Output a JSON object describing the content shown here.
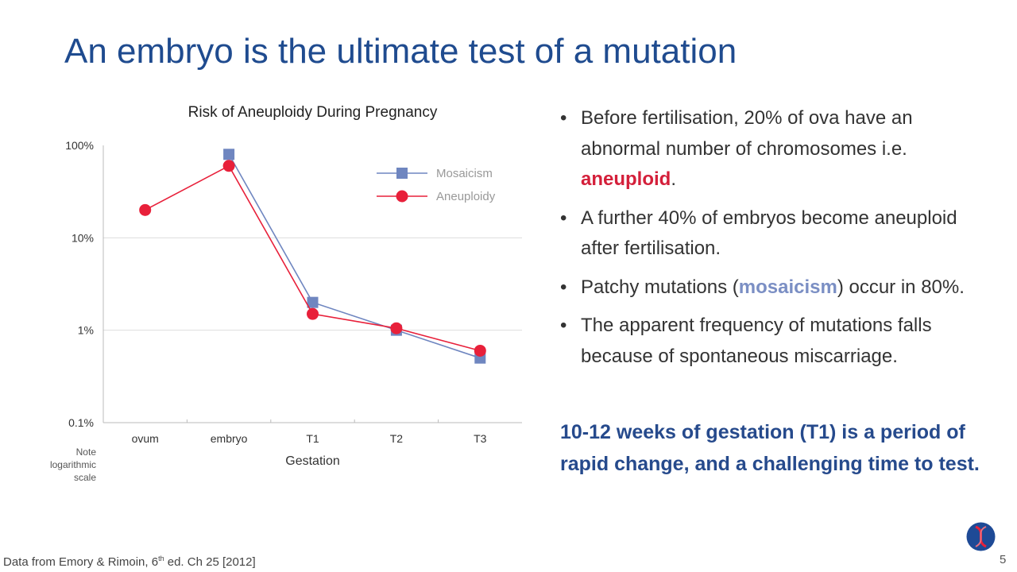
{
  "slide": {
    "title": "An embryo is the ultimate test of a mutation",
    "bullets": [
      {
        "before": "Before fertilisation, 20% of ova have an abnormal number of chromosomes i.e. ",
        "highlight": "aneuploid",
        "after": "."
      },
      {
        "before": "A further 40% of embryos become aneuploid after fertilisation.",
        "highlight": "",
        "after": ""
      },
      {
        "before": "Patchy mutations (",
        "highlight": "mosaicism",
        "after": ") occur in 80%."
      },
      {
        "before": "The apparent frequency of mutations falls because of spontaneous miscarriage.",
        "highlight": "",
        "after": ""
      }
    ],
    "conclusion": "10-12 weeks of gestation (T1) is a period of rapid change, and a challenging time to test.",
    "source_prefix": "Data from Emory & Rimoin, 6",
    "source_sup": "th",
    "source_suffix": " ed. Ch 25 [2012]",
    "page_number": "5",
    "logo": "dna-helix-logo"
  },
  "chart_data": {
    "type": "line",
    "title": "Risk of Aneuploidy During Pregnancy",
    "xlabel": "Gestation",
    "ylabel": "",
    "note": "Note logarithmic scale",
    "y_scale": "log",
    "ylim": [
      0.1,
      100
    ],
    "y_ticks": [
      "0.1%",
      "1%",
      "10%",
      "100%"
    ],
    "categories": [
      "ovum",
      "embryo",
      "T1",
      "T2",
      "T3"
    ],
    "grid": true,
    "legend_position": "top-right",
    "series": [
      {
        "name": "Mosaicism",
        "color": "#6f86c0",
        "marker": "square",
        "values": [
          null,
          80,
          2,
          1,
          0.5
        ]
      },
      {
        "name": "Aneuploidy",
        "color": "#e8203a",
        "marker": "circle",
        "values": [
          20,
          60,
          1.5,
          1.05,
          0.6
        ]
      }
    ]
  }
}
